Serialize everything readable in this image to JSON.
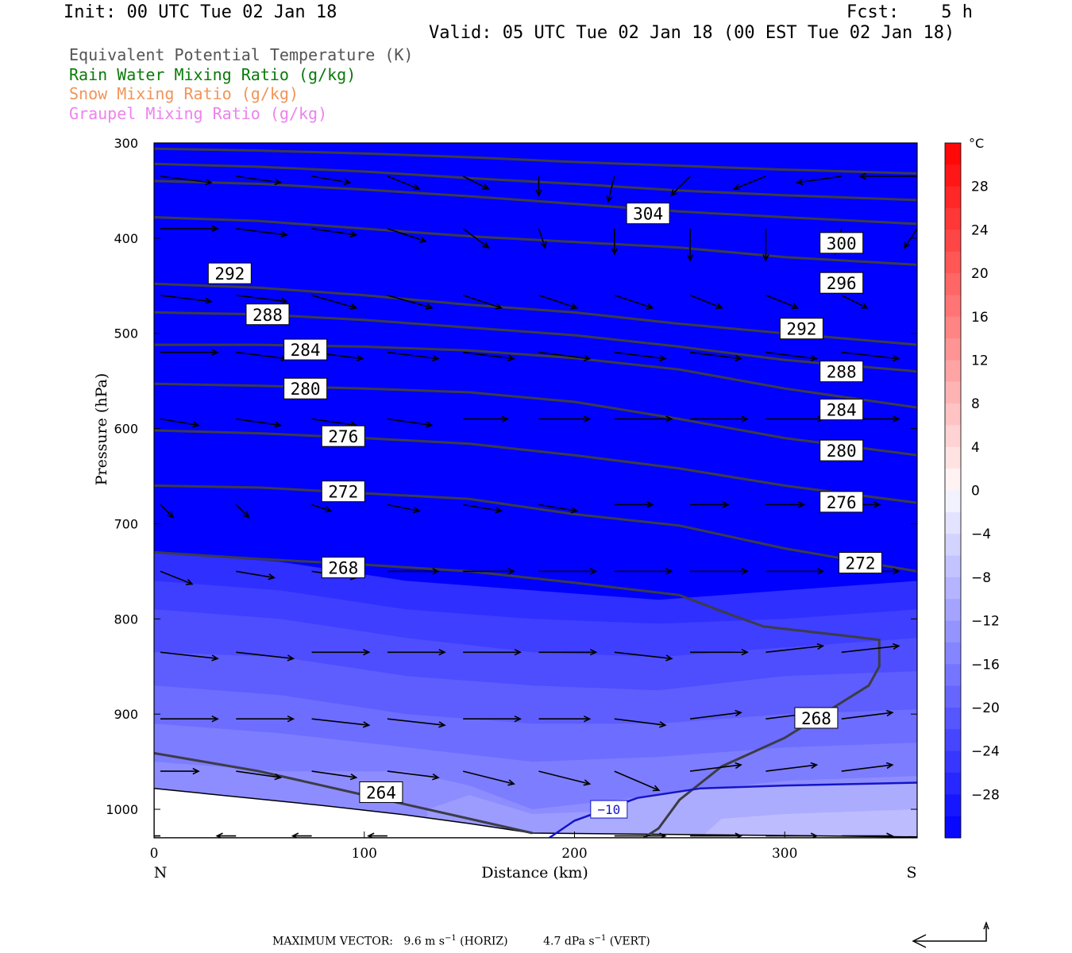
{
  "header": {
    "init": "Init: 00 UTC Tue 02 Jan 18",
    "fcst": "Fcst:    5 h",
    "valid": "Valid: 05 UTC Tue 02 Jan 18 (00 EST Tue 02 Jan 18)"
  },
  "fields": [
    {
      "label": "Equivalent Potential Temperature (K)",
      "color": "#555555"
    },
    {
      "label": "Rain Water Mixing Ratio (g/kg)",
      "color": "#0a7a0a"
    },
    {
      "label": "Snow Mixing Ratio (g/kg)",
      "color": "#f0955a"
    },
    {
      "label": "Graupel Mixing Ratio (g/kg)",
      "color": "#ee82ee"
    }
  ],
  "chart_data": {
    "type": "cross-section",
    "xlabel": "Distance (km)",
    "ylabel": "Pressure (hPa)",
    "x_ticks": [
      0,
      100,
      200,
      300
    ],
    "xlim": [
      0,
      363
    ],
    "y_ticks": [
      300,
      400,
      500,
      600,
      700,
      800,
      900,
      1000
    ],
    "ylim": [
      300,
      1030
    ],
    "left_end": "N",
    "right_end": "S",
    "theta_e_contours": [
      {
        "label": "304",
        "x": [
          0,
          50,
          100,
          150,
          200,
          250,
          300,
          363
        ],
        "p": [
          306,
          308,
          311,
          315,
          320,
          324,
          328,
          332
        ]
      },
      {
        "label": "300",
        "x": [
          0,
          50,
          100,
          150,
          200,
          250,
          300,
          363
        ],
        "p": [
          322,
          325,
          330,
          337,
          343,
          350,
          355,
          360
        ]
      },
      {
        "label": "296",
        "x": [
          0,
          50,
          100,
          150,
          200,
          250,
          300,
          363
        ],
        "p": [
          340,
          343,
          349,
          356,
          364,
          372,
          378,
          385
        ]
      },
      {
        "label": "292",
        "x": [
          0,
          50,
          100,
          150,
          200,
          250,
          300,
          363
        ],
        "p": [
          378,
          382,
          390,
          398,
          404,
          410,
          420,
          428
        ]
      },
      {
        "label": "288",
        "x": [
          0,
          50,
          100,
          150,
          200,
          250,
          300,
          363
        ],
        "p": [
          448,
          452,
          460,
          470,
          478,
          490,
          500,
          512
        ]
      },
      {
        "label": "284",
        "x": [
          0,
          50,
          100,
          150,
          200,
          250,
          300,
          363
        ],
        "p": [
          478,
          480,
          486,
          494,
          502,
          514,
          528,
          540
        ]
      },
      {
        "label": "280",
        "x": [
          0,
          50,
          100,
          150,
          200,
          250,
          300,
          363
        ],
        "p": [
          512,
          512,
          514,
          518,
          526,
          538,
          558,
          578
        ]
      },
      {
        "label": "276",
        "x": [
          0,
          50,
          100,
          150,
          200,
          250,
          300,
          363
        ],
        "p": [
          553,
          555,
          558,
          562,
          572,
          590,
          610,
          628
        ]
      },
      {
        "label": "272",
        "x": [
          0,
          50,
          100,
          150,
          200,
          250,
          300,
          363
        ],
        "p": [
          602,
          605,
          610,
          616,
          628,
          642,
          660,
          678
        ]
      },
      {
        "label": "268",
        "x": [
          0,
          50,
          100,
          150,
          200,
          250,
          300,
          363
        ],
        "p": [
          660,
          662,
          668,
          674,
          690,
          702,
          726,
          750
        ]
      },
      {
        "label": "268",
        "x": [
          0,
          50,
          100,
          150,
          200,
          250,
          270,
          290,
          330,
          345,
          345,
          340,
          300,
          270,
          250,
          240,
          233
        ],
        "p": [
          730,
          737,
          743,
          750,
          762,
          775,
          792,
          808,
          818,
          822,
          850,
          870,
          925,
          955,
          990,
          1020,
          1030
        ]
      },
      {
        "label": "264",
        "x": [
          0,
          50,
          100,
          150,
          180
        ],
        "p": [
          941,
          960,
          985,
          1010,
          1025
        ]
      }
    ],
    "isotherm": {
      "label": "−10",
      "x": [
        188,
        200,
        230,
        260,
        300,
        363
      ],
      "p": [
        1030,
        1012,
        988,
        978,
        975,
        972
      ]
    },
    "colorbar": {
      "unit": "°C",
      "labels": [
        "28",
        "24",
        "20",
        "16",
        "12",
        "8",
        "4",
        "0",
        "−4",
        "−8",
        "−12",
        "−16",
        "−20",
        "−24",
        "−28"
      ],
      "label_values": [
        28,
        24,
        20,
        16,
        12,
        8,
        4,
        0,
        -4,
        -8,
        -12,
        -16,
        -20,
        -24,
        -28
      ],
      "min": -32,
      "max": 32,
      "step": 2
    },
    "vectors": {
      "pressures": [
        335,
        390,
        460,
        520,
        590,
        680,
        750,
        835,
        905,
        960,
        1028
      ],
      "x_positions": [
        0,
        36,
        72,
        108,
        144,
        180,
        216,
        252,
        288,
        324,
        360
      ],
      "u": [
        [
          8,
          7,
          6,
          5,
          4,
          0,
          -1,
          -3,
          -5,
          -7,
          -9
        ],
        [
          9,
          8,
          7,
          6,
          4,
          1,
          0,
          0,
          0,
          -1,
          -2
        ],
        [
          8,
          8,
          7,
          7,
          6,
          6,
          6,
          5,
          5,
          4,
          3
        ],
        [
          9,
          8,
          8,
          8,
          8,
          8,
          8,
          8,
          8,
          9,
          9
        ],
        [
          6,
          7,
          7,
          7,
          7,
          8,
          9,
          9,
          9,
          9,
          9
        ],
        [
          2,
          2,
          3,
          5,
          6,
          6,
          6,
          6,
          6,
          6,
          7
        ],
        [
          5,
          6,
          7,
          8,
          8,
          9,
          9,
          9,
          9,
          9,
          9
        ],
        [
          9,
          9,
          9,
          9,
          9,
          9,
          9,
          9,
          9,
          9,
          9
        ],
        [
          9,
          9,
          9,
          9,
          9,
          8,
          8,
          8,
          8,
          8,
          8
        ],
        [
          6,
          7,
          7,
          8,
          8,
          8,
          7,
          8,
          8,
          8,
          8
        ],
        [
          -3,
          -3,
          -3,
          -3,
          0,
          0,
          8,
          8,
          8,
          8,
          8
        ]
      ],
      "v": [
        [
          -1,
          -1,
          -1,
          -2,
          -2,
          -3,
          -4,
          -3,
          -2,
          -1,
          0
        ],
        [
          0,
          -1,
          -1,
          -2,
          -3,
          -3,
          -4,
          -5,
          -5,
          -4,
          -3
        ],
        [
          -1,
          -1,
          -2,
          -2,
          -2,
          -2,
          -2,
          -2,
          -2,
          -2,
          -2
        ],
        [
          0,
          -1,
          -1,
          -1,
          -1,
          -1,
          -1,
          -1,
          -1,
          -1,
          -1
        ],
        [
          -1,
          -1,
          -1,
          -1,
          0,
          0,
          0,
          0,
          0,
          0,
          0
        ],
        [
          -2,
          -2,
          -1,
          -1,
          -1,
          -1,
          0,
          0,
          0,
          0,
          0
        ],
        [
          -2,
          -1,
          -1,
          0,
          0,
          0,
          0,
          0,
          0,
          0,
          0
        ],
        [
          -1,
          -1,
          0,
          0,
          0,
          0,
          -1,
          0,
          1,
          1,
          1
        ],
        [
          0,
          0,
          -1,
          -1,
          0,
          0,
          -1,
          1,
          1,
          1,
          1
        ],
        [
          0,
          -1,
          -1,
          -1,
          -2,
          -2,
          -3,
          1,
          1,
          1,
          1
        ],
        [
          0,
          0,
          0,
          0,
          0,
          0,
          0,
          0,
          0,
          0,
          0
        ]
      ]
    },
    "labels": {
      "theta_positions": [
        {
          "label": "304",
          "x": 235,
          "p": 374
        },
        {
          "label": "300",
          "x": 327,
          "p": 405
        },
        {
          "label": "296",
          "x": 327,
          "p": 447
        },
        {
          "label": "292",
          "x": 36,
          "p": 437
        },
        {
          "label": "292",
          "x": 308,
          "p": 495
        },
        {
          "label": "288",
          "x": 54,
          "p": 480
        },
        {
          "label": "288",
          "x": 327,
          "p": 540
        },
        {
          "label": "284",
          "x": 72,
          "p": 517
        },
        {
          "label": "284",
          "x": 327,
          "p": 580
        },
        {
          "label": "280",
          "x": 72,
          "p": 558
        },
        {
          "label": "280",
          "x": 327,
          "p": 623
        },
        {
          "label": "276",
          "x": 90,
          "p": 608
        },
        {
          "label": "276",
          "x": 327,
          "p": 677
        },
        {
          "label": "272",
          "x": 90,
          "p": 666
        },
        {
          "label": "272",
          "x": 336,
          "p": 741
        },
        {
          "label": "268",
          "x": 90,
          "p": 746
        },
        {
          "label": "268",
          "x": 315,
          "p": 904
        },
        {
          "label": "264",
          "x": 108,
          "p": 982
        }
      ]
    }
  },
  "footer": {
    "max_label": "MAXIMUM VECTOR:",
    "horiz": "9.6 m s",
    "horiz_sup": "−1",
    "horiz_tag": "(HORIZ)",
    "vert": "4.7 dPa s",
    "vert_sup": "−1",
    "vert_tag": "(VERT)"
  }
}
